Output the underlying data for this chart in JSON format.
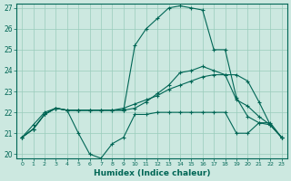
{
  "xlabel": "Humidex (Indice chaleur)",
  "bg_color": "#cce8e0",
  "grid_color": "#99ccbb",
  "line_color": "#006655",
  "xlim": [
    -0.5,
    23.5
  ],
  "ylim": [
    19.8,
    27.2
  ],
  "yticks": [
    20,
    21,
    22,
    23,
    24,
    25,
    26,
    27
  ],
  "xticks": [
    0,
    1,
    2,
    3,
    4,
    5,
    6,
    7,
    8,
    9,
    10,
    11,
    12,
    13,
    14,
    15,
    16,
    17,
    18,
    19,
    20,
    21,
    22,
    23
  ],
  "line_low_x": [
    0,
    1,
    2,
    3,
    4,
    5,
    6,
    7,
    8,
    9,
    10,
    11,
    12,
    13,
    14,
    15,
    16,
    17,
    18,
    19,
    20,
    21,
    22,
    23
  ],
  "line_low_y": [
    20.8,
    21.4,
    22.0,
    22.2,
    22.1,
    21.0,
    20.0,
    19.8,
    20.5,
    20.8,
    21.9,
    21.9,
    22.0,
    22.0,
    22.0,
    22.0,
    22.0,
    22.0,
    22.0,
    21.0,
    21.0,
    21.5,
    21.5,
    20.8
  ],
  "line_grad_x": [
    0,
    1,
    2,
    3,
    4,
    5,
    6,
    7,
    8,
    9,
    10,
    11,
    12,
    13,
    14,
    15,
    16,
    17,
    18,
    19,
    20,
    21,
    22,
    23
  ],
  "line_grad_y": [
    20.8,
    21.2,
    21.9,
    22.2,
    22.1,
    22.1,
    22.1,
    22.1,
    22.1,
    22.2,
    22.4,
    22.6,
    22.8,
    23.1,
    23.3,
    23.5,
    23.7,
    23.8,
    23.8,
    23.8,
    23.5,
    22.5,
    21.4,
    20.8
  ],
  "line_mid_x": [
    0,
    1,
    2,
    3,
    4,
    5,
    6,
    7,
    8,
    9,
    10,
    11,
    12,
    13,
    14,
    15,
    16,
    17,
    18,
    19,
    20,
    21,
    22,
    23
  ],
  "line_mid_y": [
    20.8,
    21.2,
    21.9,
    22.2,
    22.1,
    22.1,
    22.1,
    22.1,
    22.1,
    22.1,
    22.2,
    22.5,
    22.9,
    23.3,
    23.9,
    24.0,
    24.2,
    24.0,
    23.8,
    22.6,
    22.3,
    21.8,
    21.4,
    20.8
  ],
  "line_high_x": [
    0,
    1,
    2,
    3,
    4,
    5,
    6,
    7,
    8,
    9,
    10,
    11,
    12,
    13,
    14,
    15,
    16,
    17,
    18,
    19,
    20,
    21,
    22,
    23
  ],
  "line_high_y": [
    20.8,
    21.2,
    21.9,
    22.2,
    22.1,
    22.1,
    22.1,
    22.1,
    22.1,
    22.1,
    25.2,
    26.0,
    26.5,
    27.0,
    27.1,
    27.0,
    26.9,
    25.0,
    25.0,
    22.7,
    21.8,
    21.5,
    21.4,
    20.8
  ]
}
